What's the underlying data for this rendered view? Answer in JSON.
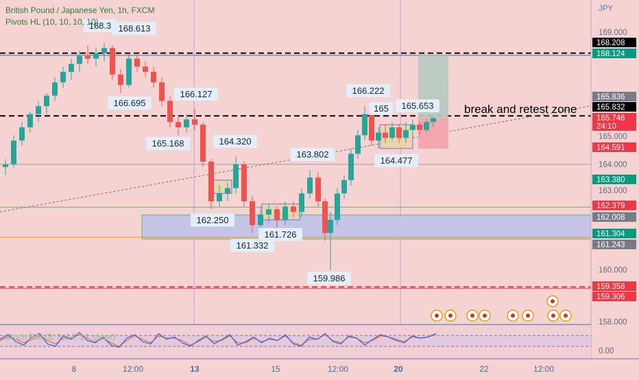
{
  "header": {
    "title": "British Pound / Japanese Yen, 1h, FXCM",
    "indicator": "Pivots HL (10, 10, 10, 10)"
  },
  "axis": {
    "currency": "JPY",
    "y_ticks": [
      "169.000",
      "165.000",
      "164.000",
      "163.000",
      "160.000",
      "158.000",
      "0.00"
    ],
    "y_ticks_partial": [
      "165.836",
      "165.746"
    ],
    "x_ticks": [
      "8",
      "12:00",
      "13",
      "15",
      "12:00",
      "20",
      "22",
      "12:00"
    ],
    "x_bold": [
      "13",
      "20"
    ]
  },
  "price_badges": [
    {
      "text": "168.208",
      "bg": "#000000",
      "fg": "#ffffff"
    },
    {
      "text": "168.124",
      "bg": "#089981",
      "fg": "#ffffff"
    },
    {
      "text": "165.836",
      "bg": "#787b86",
      "fg": "#ffffff"
    },
    {
      "text": "165.832",
      "bg": "#000000",
      "fg": "#ffffff"
    },
    {
      "text": "165.746",
      "bg": "#f23645",
      "fg": "#ffffff"
    },
    {
      "text": "24:10",
      "bg": "#f23645",
      "fg": "#ffffff"
    },
    {
      "text": "164.591",
      "bg": "#f23645",
      "fg": "#ffffff"
    },
    {
      "text": "163.380",
      "bg": "#089981",
      "fg": "#ffffff"
    },
    {
      "text": "162.379",
      "bg": "#f23645",
      "fg": "#ffffff"
    },
    {
      "text": "162.008",
      "bg": "#787b86",
      "fg": "#ffffff"
    },
    {
      "text": "161.304",
      "bg": "#089981",
      "fg": "#ffffff"
    },
    {
      "text": "161.243",
      "bg": "#787b86",
      "fg": "#ffffff"
    },
    {
      "text": "159.358",
      "bg": "#f23645",
      "fg": "#ffffff"
    },
    {
      "text": "159.306",
      "bg": "#f23645",
      "fg": "#ffffff"
    }
  ],
  "pivot_labels": [
    {
      "text": "168.3",
      "type": "high"
    },
    {
      "text": "168.613",
      "type": "high"
    },
    {
      "text": "166.695",
      "type": "low"
    },
    {
      "text": "166.127",
      "type": "high"
    },
    {
      "text": "165.168",
      "type": "low"
    },
    {
      "text": "164.320",
      "type": "high"
    },
    {
      "text": "162.250",
      "type": "low"
    },
    {
      "text": "161.726",
      "type": "low"
    },
    {
      "text": "161.332",
      "type": "low"
    },
    {
      "text": "163.802",
      "type": "high"
    },
    {
      "text": "159.986",
      "type": "low"
    },
    {
      "text": "166.222",
      "type": "high"
    },
    {
      "text": "165",
      "type": "high"
    },
    {
      "text": "165.653",
      "type": "high"
    },
    {
      "text": "164.477",
      "type": "low"
    }
  ],
  "annotation": "break and retest zone",
  "rsi_label": "Stoch RSI (3, 3, 14, 14, close)",
  "colors": {
    "background": "#f6d3d3",
    "up": "#26a69a",
    "down": "#ef5350",
    "zone_fill": "#c5c3e6",
    "zone_border": "#5cb85c",
    "pivot_label_bg": "#e3eef9",
    "rsi_k": "#2962ff",
    "rsi_d": "#ff6d00"
  },
  "chart_data": {
    "type": "candlestick",
    "title": "British Pound / Japanese Yen, 1h, FXCM",
    "ylim": [
      157.9,
      169.8
    ],
    "price_path": [
      [
        0,
        163.8
      ],
      [
        20,
        164.8
      ],
      [
        40,
        165.9
      ],
      [
        60,
        166.3
      ],
      [
        80,
        167.0
      ],
      [
        100,
        167.6
      ],
      [
        120,
        168.1
      ],
      [
        140,
        168.2
      ],
      [
        155,
        168.5
      ],
      [
        165,
        168.2
      ],
      [
        175,
        166.9
      ],
      [
        185,
        167.8
      ],
      [
        195,
        168.4
      ],
      [
        205,
        167.9
      ],
      [
        215,
        167.6
      ],
      [
        230,
        167.3
      ],
      [
        240,
        166.6
      ],
      [
        248,
        166.0
      ],
      [
        258,
        165.3
      ],
      [
        270,
        165.4
      ],
      [
        285,
        165.9
      ],
      [
        292,
        164.9
      ],
      [
        300,
        163.9
      ],
      [
        308,
        162.8
      ],
      [
        315,
        162.4
      ],
      [
        325,
        163.0
      ],
      [
        335,
        163.1
      ],
      [
        345,
        164.1
      ],
      [
        355,
        162.6
      ],
      [
        365,
        161.7
      ],
      [
        375,
        161.5
      ],
      [
        385,
        162.0
      ],
      [
        398,
        162.2
      ],
      [
        410,
        161.8
      ],
      [
        425,
        162.4
      ],
      [
        435,
        162.3
      ],
      [
        445,
        163.2
      ],
      [
        455,
        163.4
      ],
      [
        462,
        163.6
      ],
      [
        470,
        162.5
      ],
      [
        476,
        161.3
      ],
      [
        481,
        160.4
      ],
      [
        486,
        162.1
      ],
      [
        495,
        163.2
      ],
      [
        505,
        163.4
      ],
      [
        515,
        164.6
      ],
      [
        522,
        165.2
      ],
      [
        530,
        165.5
      ],
      [
        537,
        166.0
      ],
      [
        545,
        164.8
      ],
      [
        555,
        164.8
      ],
      [
        570,
        165.3
      ],
      [
        585,
        164.9
      ],
      [
        600,
        165.4
      ],
      [
        615,
        165.3
      ],
      [
        625,
        165.5
      ],
      [
        635,
        165.7
      ]
    ],
    "candles": [
      {
        "x": 8,
        "o": 163.9,
        "h": 164.2,
        "l": 163.6,
        "c": 164.0
      },
      {
        "x": 20,
        "o": 164.0,
        "h": 165.1,
        "l": 163.9,
        "c": 164.9
      },
      {
        "x": 32,
        "o": 164.9,
        "h": 165.6,
        "l": 164.7,
        "c": 165.4
      },
      {
        "x": 44,
        "o": 165.4,
        "h": 166.0,
        "l": 165.2,
        "c": 165.9
      },
      {
        "x": 56,
        "o": 165.9,
        "h": 166.4,
        "l": 165.6,
        "c": 166.2
      },
      {
        "x": 68,
        "o": 166.2,
        "h": 166.7,
        "l": 165.9,
        "c": 166.6
      },
      {
        "x": 80,
        "o": 166.6,
        "h": 167.3,
        "l": 166.4,
        "c": 167.1
      },
      {
        "x": 92,
        "o": 167.1,
        "h": 167.7,
        "l": 166.9,
        "c": 167.5
      },
      {
        "x": 104,
        "o": 167.5,
        "h": 168.0,
        "l": 167.2,
        "c": 167.8
      },
      {
        "x": 116,
        "o": 167.8,
        "h": 168.3,
        "l": 167.5,
        "c": 168.1
      },
      {
        "x": 128,
        "o": 168.1,
        "h": 168.5,
        "l": 167.8,
        "c": 168.0
      },
      {
        "x": 140,
        "o": 168.0,
        "h": 168.4,
        "l": 167.7,
        "c": 168.2
      },
      {
        "x": 152,
        "o": 168.2,
        "h": 168.6,
        "l": 167.9,
        "c": 168.4
      },
      {
        "x": 164,
        "o": 168.4,
        "h": 168.5,
        "l": 167.2,
        "c": 167.4
      },
      {
        "x": 176,
        "o": 167.4,
        "h": 167.6,
        "l": 166.7,
        "c": 167.0
      },
      {
        "x": 188,
        "o": 167.0,
        "h": 168.2,
        "l": 166.9,
        "c": 168.0
      },
      {
        "x": 200,
        "o": 168.0,
        "h": 168.1,
        "l": 167.5,
        "c": 167.7
      },
      {
        "x": 212,
        "o": 167.7,
        "h": 167.9,
        "l": 167.3,
        "c": 167.5
      },
      {
        "x": 224,
        "o": 167.5,
        "h": 167.7,
        "l": 166.9,
        "c": 167.1
      },
      {
        "x": 236,
        "o": 167.1,
        "h": 167.3,
        "l": 166.2,
        "c": 166.4
      },
      {
        "x": 248,
        "o": 166.4,
        "h": 166.6,
        "l": 165.4,
        "c": 165.6
      },
      {
        "x": 260,
        "o": 165.6,
        "h": 165.8,
        "l": 165.1,
        "c": 165.4
      },
      {
        "x": 272,
        "o": 165.4,
        "h": 165.9,
        "l": 165.2,
        "c": 165.7
      },
      {
        "x": 284,
        "o": 165.7,
        "h": 166.1,
        "l": 165.3,
        "c": 165.5
      },
      {
        "x": 296,
        "o": 165.5,
        "h": 165.6,
        "l": 163.9,
        "c": 164.1
      },
      {
        "x": 308,
        "o": 164.1,
        "h": 164.2,
        "l": 162.3,
        "c": 162.6
      },
      {
        "x": 320,
        "o": 162.6,
        "h": 163.2,
        "l": 162.4,
        "c": 162.9
      },
      {
        "x": 332,
        "o": 162.9,
        "h": 163.3,
        "l": 162.6,
        "c": 163.1
      },
      {
        "x": 344,
        "o": 163.1,
        "h": 164.3,
        "l": 162.9,
        "c": 164.0
      },
      {
        "x": 356,
        "o": 164.0,
        "h": 164.1,
        "l": 162.4,
        "c": 162.6
      },
      {
        "x": 368,
        "o": 162.6,
        "h": 162.8,
        "l": 161.4,
        "c": 161.7
      },
      {
        "x": 380,
        "o": 161.7,
        "h": 162.4,
        "l": 161.5,
        "c": 162.1
      },
      {
        "x": 392,
        "o": 162.1,
        "h": 162.5,
        "l": 161.8,
        "c": 162.3
      },
      {
        "x": 404,
        "o": 162.3,
        "h": 162.4,
        "l": 161.6,
        "c": 161.9
      },
      {
        "x": 416,
        "o": 161.9,
        "h": 162.6,
        "l": 161.7,
        "c": 162.4
      },
      {
        "x": 428,
        "o": 162.4,
        "h": 162.6,
        "l": 162.0,
        "c": 162.2
      },
      {
        "x": 440,
        "o": 162.2,
        "h": 163.1,
        "l": 162.0,
        "c": 162.9
      },
      {
        "x": 452,
        "o": 162.9,
        "h": 163.8,
        "l": 162.7,
        "c": 163.5
      },
      {
        "x": 464,
        "o": 163.5,
        "h": 163.7,
        "l": 162.4,
        "c": 162.6
      },
      {
        "x": 474,
        "o": 162.6,
        "h": 162.7,
        "l": 161.1,
        "c": 161.4
      },
      {
        "x": 482,
        "o": 161.4,
        "h": 162.2,
        "l": 160.0,
        "c": 161.9
      },
      {
        "x": 492,
        "o": 161.9,
        "h": 163.1,
        "l": 161.7,
        "c": 162.9
      },
      {
        "x": 502,
        "o": 162.9,
        "h": 163.6,
        "l": 162.7,
        "c": 163.4
      },
      {
        "x": 512,
        "o": 163.4,
        "h": 164.6,
        "l": 163.2,
        "c": 164.4
      },
      {
        "x": 522,
        "o": 164.4,
        "h": 165.3,
        "l": 164.2,
        "c": 165.1
      },
      {
        "x": 532,
        "o": 165.1,
        "h": 166.2,
        "l": 164.9,
        "c": 165.9
      },
      {
        "x": 542,
        "o": 165.9,
        "h": 166.0,
        "l": 164.7,
        "c": 164.9
      },
      {
        "x": 552,
        "o": 164.9,
        "h": 165.4,
        "l": 164.6,
        "c": 165.2
      },
      {
        "x": 562,
        "o": 165.2,
        "h": 165.5,
        "l": 164.8,
        "c": 165.0
      },
      {
        "x": 572,
        "o": 165.0,
        "h": 165.6,
        "l": 164.9,
        "c": 165.4
      },
      {
        "x": 582,
        "o": 165.4,
        "h": 165.5,
        "l": 164.8,
        "c": 165.0
      },
      {
        "x": 592,
        "o": 165.0,
        "h": 165.6,
        "l": 164.8,
        "c": 165.3
      },
      {
        "x": 602,
        "o": 165.3,
        "h": 165.7,
        "l": 165.0,
        "c": 165.5
      },
      {
        "x": 612,
        "o": 165.5,
        "h": 165.6,
        "l": 165.1,
        "c": 165.3
      },
      {
        "x": 622,
        "o": 165.3,
        "h": 165.7,
        "l": 165.2,
        "c": 165.6
      },
      {
        "x": 632,
        "o": 165.6,
        "h": 165.8,
        "l": 165.4,
        "c": 165.75
      }
    ],
    "horizontal_lines": [
      {
        "price": 168.208,
        "style": "dashed",
        "color": "#000000"
      },
      {
        "price": 168.124,
        "style": "solid",
        "color": "#3d6f9f"
      },
      {
        "price": 165.832,
        "style": "dashed",
        "color": "#000000"
      },
      {
        "price": 164.0,
        "style": "solid",
        "color": "#9aa0a6"
      },
      {
        "price": 162.379,
        "style": "solid",
        "color": "#5cb85c"
      },
      {
        "price": 161.243,
        "style": "solid",
        "color": "#ff9800"
      },
      {
        "price": 159.358,
        "style": "dashed",
        "color": "#f23645"
      },
      {
        "price": 159.306,
        "style": "solid",
        "color": "#f23645"
      }
    ],
    "zone": {
      "top": 162.008,
      "bottom": 161.304
    },
    "trendline": {
      "from": [
        0,
        162.2
      ],
      "to": [
        860,
        166.2
      ]
    },
    "position": {
      "x0": 608,
      "x1": 652,
      "entry": 165.746,
      "target": 168.124,
      "stop": 164.591
    },
    "rsi_k": [
      60,
      80,
      50,
      35,
      70,
      85,
      40,
      30,
      75,
      60,
      90,
      55,
      45,
      70,
      35,
      25,
      65,
      80,
      50,
      40,
      85,
      60,
      70,
      45,
      30,
      55,
      75,
      40,
      60,
      80,
      35,
      50,
      70,
      45,
      65,
      55,
      80,
      40,
      30,
      70,
      60,
      85,
      50,
      40,
      75,
      65,
      35,
      60,
      80,
      70,
      55,
      45,
      75,
      65,
      70,
      85
    ],
    "rsi_d": [
      55,
      70,
      60,
      45,
      60,
      75,
      55,
      40,
      65,
      65,
      80,
      65,
      50,
      65,
      45,
      30,
      55,
      75,
      60,
      45,
      75,
      65,
      65,
      55,
      35,
      50,
      70,
      50,
      55,
      75,
      45,
      45,
      65,
      50,
      60,
      55,
      75,
      45,
      35,
      60,
      60,
      80,
      55,
      45,
      70,
      65,
      45,
      55,
      75,
      70,
      60,
      50,
      70,
      65,
      70,
      80
    ]
  }
}
